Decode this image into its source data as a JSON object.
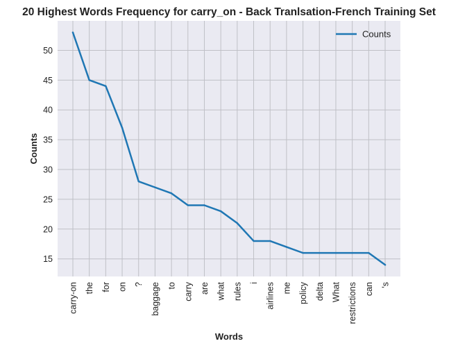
{
  "chart_data": {
    "type": "line",
    "title": "20 Highest Words Frequency for carry_on - Back Tranlsation-French Training Set",
    "xlabel": "Words",
    "ylabel": "Counts",
    "categories": [
      "carry-on",
      "the",
      "for",
      "on",
      "?",
      "baggage",
      "to",
      "carry",
      "are",
      "what",
      "rules",
      "i",
      "airlines",
      "me",
      "policy",
      "delta",
      "What",
      "restrictions",
      "can",
      "'s"
    ],
    "series": [
      {
        "name": "Counts",
        "values": [
          53,
          45,
          44,
          37,
          28,
          27,
          26,
          24,
          24,
          23,
          21,
          18,
          18,
          17,
          16,
          16,
          16,
          16,
          16,
          14
        ]
      }
    ],
    "yticks": [
      15,
      20,
      25,
      30,
      35,
      40,
      45,
      50
    ],
    "ylim": [
      12.05,
      54.95
    ],
    "grid": true,
    "legend": "top-right",
    "colors": {
      "line": "#1f77b4",
      "plot_bg": "#eaeaf2",
      "grid": "#bfc0c6"
    }
  }
}
